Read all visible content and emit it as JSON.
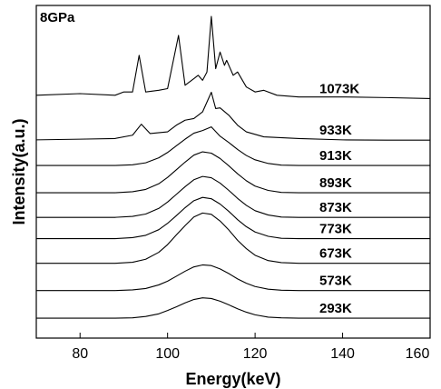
{
  "chart_data": {
    "type": "line",
    "annotation": "8GPa",
    "x_label": "Energy(keV)",
    "y_label": "Intensity(a.u.)",
    "xlim": [
      70,
      160
    ],
    "xticks": [
      80,
      100,
      120,
      140,
      160
    ],
    "ylim": [
      0,
      100
    ],
    "series": [
      {
        "name": "1073K",
        "color": "#000000",
        "x": [
          70,
          80,
          88,
          90,
          92,
          93.5,
          95,
          98,
          100,
          102.5,
          104,
          106,
          107,
          108,
          109,
          110,
          111,
          112,
          113,
          113.5,
          115,
          116,
          118,
          120,
          122,
          125,
          130,
          140,
          150,
          160
        ],
        "values": [
          73,
          73.5,
          73,
          74,
          74,
          85,
          74,
          74.5,
          75,
          91,
          76,
          78,
          79,
          77.5,
          80,
          96.7,
          81,
          86,
          82,
          83.5,
          79,
          80,
          75.5,
          74,
          74.5,
          73,
          72.5,
          72.5,
          72.3,
          72
        ]
      },
      {
        "name": "933K",
        "color": "#000000",
        "x": [
          70,
          80,
          88,
          92,
          94,
          96,
          100,
          102,
          104,
          106,
          108,
          110,
          111,
          112,
          114,
          116,
          118,
          122,
          130,
          140,
          150,
          160
        ],
        "values": [
          59.6,
          59.8,
          60,
          61,
          64.3,
          61.5,
          62,
          64,
          65.5,
          66,
          68,
          73.9,
          69,
          69.2,
          67,
          64,
          62,
          60.5,
          60,
          59.6,
          59.5,
          59.5
        ]
      },
      {
        "name": "913K",
        "color": "#000000",
        "x": [
          70,
          80,
          88,
          92,
          95,
          98,
          100,
          102,
          104,
          106,
          108,
          110,
          112,
          114,
          116,
          118,
          120,
          123,
          126,
          130,
          140,
          150,
          160
        ],
        "values": [
          51.9,
          51.9,
          51.9,
          52.1,
          52.7,
          54.2,
          55.8,
          57.8,
          59.8,
          61.6,
          62.4,
          63.5,
          60.7,
          58.8,
          56.7,
          54.9,
          53.6,
          52.5,
          52,
          51.9,
          51.9,
          51.9,
          51.9
        ]
      },
      {
        "name": "893K",
        "color": "#000000",
        "x": [
          70,
          80,
          88,
          92,
          95,
          98,
          100,
          102,
          104,
          106,
          108,
          110,
          112,
          114,
          116,
          118,
          120,
          123,
          126,
          130,
          140,
          150,
          160
        ],
        "values": [
          43.7,
          43.7,
          43.7,
          44,
          44.7,
          46.4,
          48.3,
          50.6,
          52.9,
          55,
          56,
          55.6,
          54,
          51.8,
          49.4,
          47.3,
          45.7,
          44.4,
          43.8,
          43.7,
          43.7,
          43.7,
          43.7
        ]
      },
      {
        "name": "873K",
        "color": "#000000",
        "x": [
          70,
          80,
          88,
          92,
          95,
          98,
          100,
          102,
          104,
          106,
          108,
          110,
          112,
          114,
          116,
          118,
          120,
          123,
          126,
          130,
          140,
          150,
          160
        ],
        "values": [
          36.3,
          36.3,
          36.3,
          36.6,
          37.3,
          39,
          40.9,
          43.2,
          45.5,
          47.6,
          48.6,
          48.2,
          46.6,
          44.4,
          42,
          39.9,
          38.3,
          37,
          36.4,
          36.3,
          36.3,
          36.3,
          36.3
        ]
      },
      {
        "name": "773K",
        "color": "#000000",
        "x": [
          70,
          80,
          88,
          92,
          95,
          98,
          100,
          102,
          104,
          106,
          108,
          110,
          112,
          114,
          116,
          118,
          120,
          123,
          126,
          130,
          140,
          150,
          160
        ],
        "values": [
          29.9,
          29.9,
          29.9,
          30.2,
          30.9,
          32.6,
          34.5,
          36.8,
          39.2,
          41.3,
          42.3,
          41.9,
          40.3,
          38.1,
          35.6,
          33.5,
          31.9,
          30.6,
          30,
          29.9,
          29.9,
          29.9,
          29.9
        ]
      },
      {
        "name": "673K",
        "color": "#000000",
        "x": [
          70,
          80,
          88,
          92,
          95,
          98,
          100,
          102,
          104,
          106,
          108,
          110,
          112,
          114,
          116,
          118,
          120,
          123,
          126,
          130,
          140,
          150,
          160
        ],
        "values": [
          22.5,
          22.5,
          22.5,
          22.8,
          23.7,
          25.8,
          28.1,
          31,
          33.8,
          36.4,
          37.6,
          37.2,
          35.2,
          32.5,
          29.4,
          26.9,
          24.9,
          23.3,
          22.7,
          22.5,
          22.5,
          22.5,
          22.5
        ]
      },
      {
        "name": "573K",
        "color": "#000000",
        "x": [
          70,
          80,
          88,
          92,
          95,
          98,
          100,
          102,
          104,
          106,
          108,
          110,
          112,
          114,
          116,
          118,
          120,
          123,
          126,
          130,
          140,
          150,
          160
        ],
        "values": [
          14.3,
          14.3,
          14.3,
          14.5,
          14.9,
          16,
          17.1,
          18.6,
          20.1,
          21.4,
          22,
          21.8,
          20.8,
          19.4,
          17.8,
          16.5,
          15.5,
          14.7,
          14.4,
          14.3,
          14.3,
          14.3,
          14.3
        ]
      },
      {
        "name": "293K",
        "color": "#000000",
        "x": [
          70,
          80,
          88,
          92,
          95,
          98,
          100,
          102,
          104,
          106,
          108,
          110,
          112,
          114,
          116,
          118,
          120,
          123,
          126,
          130,
          140,
          150,
          160
        ],
        "values": [
          6,
          6,
          6,
          6.1,
          6.5,
          7.3,
          8.3,
          9.4,
          10.6,
          11.6,
          12.1,
          11.9,
          11.1,
          10,
          8.8,
          7.8,
          7,
          6.3,
          6.1,
          6,
          6,
          6,
          6
        ]
      }
    ]
  }
}
